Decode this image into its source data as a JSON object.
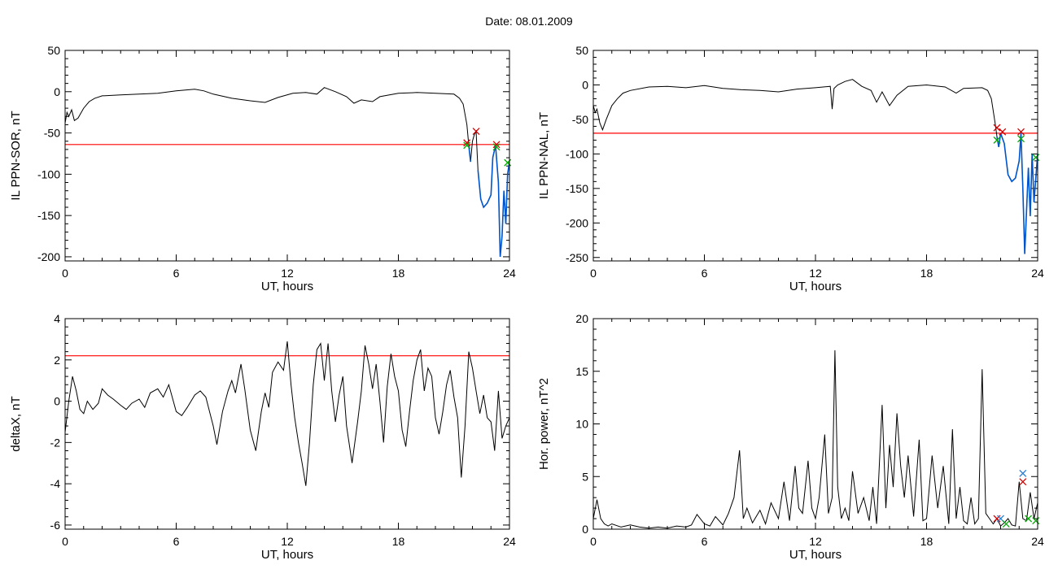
{
  "title": "Date:  08.01.2009",
  "chart_data": [
    {
      "type": "line",
      "xlabel": "UT, hours",
      "ylabel": "IL PPN-SOR, nT",
      "xlim": [
        0,
        24
      ],
      "ylim": [
        -205,
        50
      ],
      "xticks": [
        0,
        6,
        12,
        18,
        24
      ],
      "yticks": [
        50,
        0,
        -50,
        -100,
        -150,
        -200
      ],
      "threshold": -64,
      "threshold_color": "#ff0000",
      "line_color": "#000000",
      "highlight_color": "#0055cc",
      "series": [
        {
          "x": [
            0,
            0.1,
            0.2,
            0.35,
            0.5,
            0.7,
            1.0,
            1.3,
            1.6,
            2,
            3,
            4,
            5,
            6,
            6.5,
            7.0,
            7.5,
            8,
            9,
            10,
            10.8,
            11.5,
            12.3,
            13,
            13.6,
            14.0,
            14.6,
            15.2,
            15.6,
            16,
            16.6,
            17,
            18,
            19,
            20,
            21,
            21.3,
            21.5,
            21.7,
            21.8,
            21.9,
            22.0,
            22.1,
            22.2,
            22.3,
            22.45,
            22.6,
            22.8,
            23.0,
            23.1,
            23.25,
            23.4,
            23.5,
            23.6,
            23.7,
            23.8,
            23.9,
            24.0
          ],
          "y": [
            -38,
            -25,
            -30,
            -22,
            -35,
            -32,
            -20,
            -12,
            -8,
            -5,
            -4,
            -3,
            -2,
            1,
            2,
            3,
            1,
            -3,
            -8,
            -11,
            -13,
            -7,
            -2,
            -1,
            -3,
            5,
            0,
            -6,
            -14,
            -10,
            -12,
            -6,
            -2,
            -1,
            -2,
            -3,
            -8,
            -15,
            -40,
            -65,
            -85,
            -60,
            -52,
            -48,
            -95,
            -130,
            -140,
            -135,
            -125,
            -80,
            -65,
            -110,
            -200,
            -175,
            -120,
            -160,
            -100,
            -85
          ]
        }
      ],
      "markers": [
        {
          "x": 21.7,
          "y": -62,
          "color": "#d40000"
        },
        {
          "x": 21.7,
          "y": -65,
          "color": "#00aa00"
        },
        {
          "x": 22.2,
          "y": -48,
          "color": "#d40000"
        },
        {
          "x": 23.3,
          "y": -64,
          "color": "#d40000"
        },
        {
          "x": 23.3,
          "y": -67,
          "color": "#00aa00"
        },
        {
          "x": 23.9,
          "y": -86,
          "color": "#00aa00"
        }
      ]
    },
    {
      "type": "line",
      "xlabel": "UT, hours",
      "ylabel": "IL PPN-NAL, nT",
      "xlim": [
        0,
        24
      ],
      "ylim": [
        -255,
        50
      ],
      "xticks": [
        0,
        6,
        12,
        18,
        24
      ],
      "yticks": [
        50,
        0,
        -50,
        -100,
        -150,
        -200,
        -250
      ],
      "threshold": -70,
      "threshold_color": "#ff0000",
      "line_color": "#000000",
      "highlight_color": "#0055cc",
      "series": [
        {
          "x": [
            0,
            0.1,
            0.2,
            0.35,
            0.5,
            0.7,
            1.0,
            1.3,
            1.6,
            2,
            3,
            4,
            5,
            6,
            7,
            8,
            9,
            10,
            11,
            12,
            12.8,
            12.9,
            13.0,
            13.2,
            13.6,
            14.0,
            14.5,
            15,
            15.3,
            15.6,
            16.0,
            16.4,
            17,
            18,
            19,
            19.6,
            20.0,
            21,
            21.3,
            21.5,
            21.7,
            21.8,
            21.9,
            22.0,
            22.2,
            22.4,
            22.6,
            22.8,
            23.0,
            23.1,
            23.2,
            23.3,
            23.5,
            23.6,
            23.7,
            23.8,
            24.0
          ],
          "y": [
            -30,
            -40,
            -35,
            -55,
            -65,
            -50,
            -30,
            -20,
            -12,
            -8,
            -3,
            -2,
            -4,
            -1,
            -5,
            -7,
            -8,
            -10,
            -6,
            -4,
            -2,
            -35,
            -5,
            0,
            5,
            8,
            -2,
            -8,
            -25,
            -10,
            -30,
            -15,
            -2,
            0,
            -3,
            -12,
            -5,
            -4,
            -8,
            -20,
            -55,
            -75,
            -90,
            -70,
            -85,
            -130,
            -140,
            -135,
            -110,
            -70,
            -150,
            -245,
            -120,
            -190,
            -100,
            -170,
            -100
          ]
        }
      ],
      "markers": [
        {
          "x": 21.8,
          "y": -62,
          "color": "#d40000"
        },
        {
          "x": 21.8,
          "y": -80,
          "color": "#00aa00"
        },
        {
          "x": 22.1,
          "y": -68,
          "color": "#d40000"
        },
        {
          "x": 23.1,
          "y": -68,
          "color": "#d40000"
        },
        {
          "x": 23.1,
          "y": -78,
          "color": "#00aa00"
        },
        {
          "x": 23.9,
          "y": -105,
          "color": "#00aa00"
        }
      ]
    },
    {
      "type": "line",
      "xlabel": "UT, hours",
      "ylabel": "deltaX, nT",
      "xlim": [
        0,
        24
      ],
      "ylim": [
        -6.2,
        4
      ],
      "xticks": [
        0,
        6,
        12,
        18,
        24
      ],
      "yticks": [
        4,
        2,
        0,
        -2,
        -4,
        -6
      ],
      "threshold": 2.2,
      "threshold_color": "#ff0000",
      "line_color": "#000000",
      "series": [
        {
          "x": [
            0,
            0.2,
            0.4,
            0.6,
            0.8,
            1.0,
            1.2,
            1.5,
            1.8,
            2.0,
            2.3,
            2.6,
            3.0,
            3.3,
            3.6,
            4.0,
            4.3,
            4.6,
            5.0,
            5.3,
            5.6,
            6.0,
            6.3,
            6.6,
            7.0,
            7.3,
            7.6,
            8.0,
            8.2,
            8.5,
            8.8,
            9.0,
            9.2,
            9.5,
            9.7,
            10.0,
            10.3,
            10.6,
            10.8,
            11.0,
            11.2,
            11.5,
            11.8,
            12.0,
            12.2,
            12.4,
            12.6,
            12.8,
            13.0,
            13.2,
            13.4,
            13.6,
            13.8,
            14.0,
            14.2,
            14.4,
            14.6,
            14.8,
            15.0,
            15.2,
            15.5,
            15.8,
            16.0,
            16.2,
            16.4,
            16.6,
            16.8,
            17.0,
            17.2,
            17.4,
            17.6,
            17.8,
            18.0,
            18.2,
            18.4,
            18.6,
            18.8,
            19.0,
            19.2,
            19.4,
            19.6,
            19.8,
            20.0,
            20.2,
            20.4,
            20.6,
            20.8,
            21.0,
            21.2,
            21.4,
            21.6,
            21.8,
            22.0,
            22.2,
            22.4,
            22.6,
            22.8,
            23.0,
            23.2,
            23.4,
            23.6,
            23.8,
            24.0
          ],
          "y": [
            -1.5,
            0.0,
            1.2,
            0.5,
            -0.4,
            -0.6,
            0.0,
            -0.4,
            -0.1,
            0.6,
            0.3,
            0.1,
            -0.2,
            -0.4,
            -0.1,
            0.1,
            -0.3,
            0.4,
            0.6,
            0.2,
            0.8,
            -0.5,
            -0.7,
            -0.3,
            0.3,
            0.5,
            0.2,
            -1.2,
            -2.1,
            -0.5,
            0.5,
            1.0,
            0.4,
            1.8,
            0.6,
            -1.4,
            -2.4,
            -0.5,
            0.4,
            -0.3,
            1.4,
            1.9,
            1.5,
            2.9,
            0.8,
            -0.8,
            -2.0,
            -3.0,
            -4.1,
            -2.0,
            0.8,
            2.5,
            2.8,
            1.0,
            2.8,
            0.5,
            -1.0,
            0.3,
            1.2,
            -1.2,
            -3.0,
            -1.0,
            0.5,
            2.7,
            1.8,
            0.6,
            1.8,
            0.0,
            -2.0,
            0.7,
            2.3,
            1.2,
            0.5,
            -1.4,
            -2.2,
            -0.5,
            1.0,
            2.0,
            2.5,
            0.5,
            1.6,
            1.2,
            -0.8,
            -1.6,
            -0.5,
            0.8,
            1.5,
            0.2,
            -0.8,
            -3.7,
            -1.2,
            2.4,
            1.6,
            0.5,
            -0.6,
            0.3,
            -0.8,
            -1.0,
            -2.4,
            0.5,
            -1.8,
            -1.2,
            -0.8
          ]
        }
      ]
    },
    {
      "type": "line",
      "xlabel": "UT, hours",
      "ylabel": "Hor. power, nT^2",
      "xlim": [
        0,
        24
      ],
      "ylim": [
        0,
        20
      ],
      "xticks": [
        0,
        6,
        12,
        18,
        24
      ],
      "yticks": [
        20,
        15,
        10,
        5,
        0
      ],
      "line_color": "#000000",
      "series": [
        {
          "x": [
            0,
            0.2,
            0.4,
            0.6,
            0.8,
            1.0,
            1.5,
            2.0,
            2.5,
            3.0,
            3.5,
            4.0,
            4.5,
            5.0,
            5.3,
            5.6,
            6.0,
            6.3,
            6.6,
            7.0,
            7.3,
            7.6,
            7.9,
            8.1,
            8.3,
            8.6,
            9.0,
            9.3,
            9.6,
            10.0,
            10.3,
            10.6,
            10.9,
            11.1,
            11.3,
            11.6,
            11.8,
            12.0,
            12.2,
            12.5,
            12.7,
            12.9,
            13.05,
            13.2,
            13.4,
            13.6,
            13.8,
            14.0,
            14.3,
            14.6,
            14.9,
            15.1,
            15.3,
            15.6,
            15.8,
            16.0,
            16.2,
            16.4,
            16.6,
            16.8,
            17.0,
            17.3,
            17.6,
            17.8,
            18.0,
            18.3,
            18.6,
            18.9,
            19.2,
            19.4,
            19.6,
            19.8,
            20.0,
            20.2,
            20.4,
            20.6,
            20.8,
            21.0,
            21.2,
            21.4,
            21.6,
            21.8,
            22.0,
            22.2,
            22.4,
            22.6,
            22.8,
            23.0,
            23.2,
            23.4,
            23.6,
            23.8,
            24.0
          ],
          "y": [
            1.0,
            2.8,
            1.0,
            0.5,
            0.3,
            0.5,
            0.2,
            0.4,
            0.2,
            0.1,
            0.2,
            0.1,
            0.3,
            0.2,
            0.4,
            1.4,
            0.5,
            0.3,
            1.2,
            0.4,
            1.5,
            3.0,
            7.5,
            1.0,
            2.0,
            0.6,
            1.8,
            0.5,
            2.5,
            1.0,
            4.5,
            0.8,
            6.0,
            2.0,
            1.5,
            6.5,
            2.0,
            1.0,
            3.0,
            9.0,
            1.5,
            3.0,
            17.0,
            4.0,
            1.0,
            2.0,
            0.8,
            5.5,
            1.5,
            3.0,
            0.8,
            4.0,
            0.5,
            11.8,
            2.0,
            8.0,
            4.0,
            11.0,
            6.0,
            3.0,
            7.0,
            1.2,
            8.5,
            0.8,
            1.0,
            7.0,
            2.0,
            6.0,
            0.5,
            9.5,
            1.0,
            4.0,
            0.8,
            0.5,
            3.0,
            0.5,
            1.0,
            15.2,
            1.5,
            1.0,
            0.5,
            1.0,
            0.3,
            0.6,
            1.0,
            0.4,
            0.3,
            4.5,
            1.0,
            0.8,
            3.5,
            1.0,
            2.5
          ]
        }
      ],
      "markers": [
        {
          "x": 21.8,
          "y": 1.0,
          "color": "#d40000"
        },
        {
          "x": 22.0,
          "y": 1.0,
          "color": "#2a7fd4"
        },
        {
          "x": 22.3,
          "y": 0.5,
          "color": "#00aa00"
        },
        {
          "x": 23.2,
          "y": 5.3,
          "color": "#2a7fd4"
        },
        {
          "x": 23.2,
          "y": 4.5,
          "color": "#d40000"
        },
        {
          "x": 23.5,
          "y": 1.0,
          "color": "#00aa00"
        },
        {
          "x": 23.9,
          "y": 0.8,
          "color": "#00aa00"
        }
      ]
    }
  ]
}
